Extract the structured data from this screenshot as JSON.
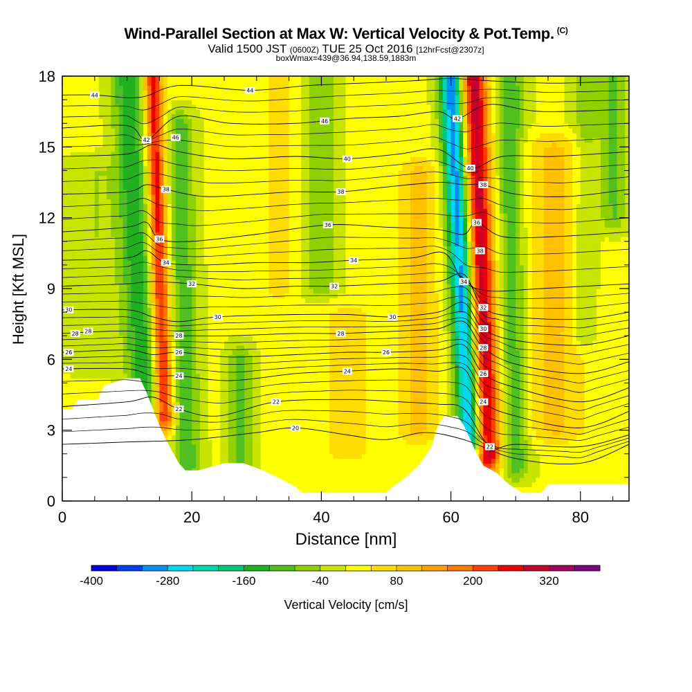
{
  "title": {
    "main": "Wind-Parallel Section at Max W: Vertical Velocity & Pot.Temp.",
    "mark": "(C)",
    "valid_prefix": "Valid 1500 JST",
    "valid_utc": "(0600Z)",
    "valid_suffix": "TUE 25 Oct 2016",
    "forecast": "[12hrFcst@2307z]",
    "box_info": "boxWmax=439@36.94,138.59,1883m"
  },
  "chart_data": {
    "type": "heatmap",
    "xlabel": "Distance [nm]",
    "ylabel": "Height [Kft MSL]",
    "xlim": [
      0,
      87.5
    ],
    "ylim": [
      0,
      18
    ],
    "x_ticks": [
      0,
      20,
      40,
      60,
      80
    ],
    "y_ticks": [
      0,
      3,
      6,
      9,
      12,
      15,
      18
    ],
    "colorbar": {
      "label": "Vertical Velocity [cm/s]",
      "tick_labels": [
        "-400",
        "-280",
        "-160",
        "-40",
        "80",
        "200",
        "320"
      ],
      "tick_values": [
        -400,
        -280,
        -160,
        -40,
        80,
        200,
        320
      ],
      "levels_min": -400,
      "levels_step": 40,
      "colors": [
        "#0000dd",
        "#0040f0",
        "#0090f0",
        "#00d8f0",
        "#00d8b0",
        "#00c878",
        "#20b020",
        "#50c020",
        "#90d000",
        "#c8e400",
        "#ffff00",
        "#ffdc00",
        "#ffc000",
        "#ffa000",
        "#ff7800",
        "#ff4000",
        "#ee0000",
        "#c80030",
        "#a00060",
        "#800080"
      ]
    },
    "terrain_kft": [
      [
        0,
        3.9
      ],
      [
        1.5,
        3.9
      ],
      [
        2.5,
        4.3
      ],
      [
        5.5,
        4.3
      ],
      [
        6.5,
        4.9
      ],
      [
        10,
        5.2
      ],
      [
        12,
        5.2
      ],
      [
        13,
        4.6
      ],
      [
        14,
        3.9
      ],
      [
        15,
        3.2
      ],
      [
        16,
        2.6
      ],
      [
        17,
        2.1
      ],
      [
        18,
        1.6
      ],
      [
        19,
        1.3
      ],
      [
        21,
        1.3
      ],
      [
        25,
        1.6
      ],
      [
        28,
        1.6
      ],
      [
        31,
        1.3
      ],
      [
        34,
        0.9
      ],
      [
        36,
        0.6
      ],
      [
        37,
        0.35
      ],
      [
        39,
        0.35
      ],
      [
        42,
        0.35
      ],
      [
        46,
        0.35
      ],
      [
        50,
        0.35
      ],
      [
        51,
        0.6
      ],
      [
        53,
        1.0
      ],
      [
        55,
        1.5
      ],
      [
        57,
        2.3
      ],
      [
        58,
        3.2
      ],
      [
        59,
        3.6
      ],
      [
        61,
        3.6
      ],
      [
        62,
        3.2
      ],
      [
        63,
        2.6
      ],
      [
        64,
        2.0
      ],
      [
        65,
        1.5
      ],
      [
        67,
        1.2
      ],
      [
        69,
        0.7
      ],
      [
        71,
        0.35
      ],
      [
        74,
        0.35
      ],
      [
        75,
        0.7
      ],
      [
        79,
        0.7
      ],
      [
        83,
        0.7
      ],
      [
        87.5,
        0.7
      ]
    ],
    "theta_contours_K": [
      {
        "label": "20",
        "at": [
          [
            36,
            3.1
          ]
        ],
        "values": [
          [
            0,
            2.4
          ],
          [
            10,
            2.5
          ],
          [
            20,
            2.6
          ],
          [
            30,
            2.9
          ],
          [
            36,
            3.1
          ],
          [
            44,
            2.8
          ],
          [
            50,
            2.6
          ],
          [
            56,
            2.9
          ],
          [
            62,
            2.6
          ],
          [
            70,
            1.8
          ],
          [
            80,
            1.6
          ],
          [
            87.5,
            2.4
          ]
        ]
      },
      {
        "label": "22",
        "at": [
          [
            33,
            4.2
          ],
          [
            18,
            3.9
          ],
          [
            66,
            2.3
          ]
        ],
        "values": [
          [
            0,
            4.0
          ],
          [
            10,
            4.2
          ],
          [
            14,
            4.4
          ],
          [
            18,
            3.9
          ],
          [
            24,
            3.6
          ],
          [
            33,
            4.2
          ],
          [
            44,
            4.3
          ],
          [
            52,
            4.2
          ],
          [
            58,
            4.1
          ],
          [
            62,
            3.9
          ],
          [
            66,
            2.3
          ],
          [
            70,
            2.4
          ],
          [
            80,
            2.3
          ],
          [
            87.5,
            2.8
          ]
        ]
      },
      {
        "label": "24",
        "at": [
          [
            1,
            5.6
          ],
          [
            18,
            5.3
          ],
          [
            44,
            5.5
          ],
          [
            65,
            4.2
          ]
        ],
        "values": [
          [
            0,
            5.6
          ],
          [
            10,
            5.6
          ],
          [
            14,
            5.3
          ],
          [
            18,
            5.3
          ],
          [
            26,
            5.1
          ],
          [
            36,
            5.4
          ],
          [
            44,
            5.5
          ],
          [
            52,
            5.6
          ],
          [
            58,
            5.5
          ],
          [
            62,
            5.6
          ],
          [
            65,
            4.2
          ],
          [
            70,
            3.6
          ],
          [
            80,
            3.1
          ],
          [
            87.5,
            3.8
          ]
        ]
      },
      {
        "label": "26",
        "at": [
          [
            1,
            6.3
          ],
          [
            18,
            6.3
          ],
          [
            50,
            6.3
          ],
          [
            65,
            5.4
          ]
        ],
        "values": [
          [
            0,
            6.3
          ],
          [
            10,
            6.4
          ],
          [
            14,
            6.2
          ],
          [
            18,
            6.3
          ],
          [
            26,
            6.1
          ],
          [
            36,
            6.2
          ],
          [
            44,
            6.3
          ],
          [
            50,
            6.3
          ],
          [
            58,
            6.4
          ],
          [
            62,
            6.6
          ],
          [
            65,
            5.4
          ],
          [
            70,
            4.8
          ],
          [
            80,
            4.2
          ],
          [
            87.5,
            4.8
          ]
        ]
      },
      {
        "label": "28",
        "at": [
          [
            2,
            7.1
          ],
          [
            18,
            7.0
          ],
          [
            43,
            7.1
          ],
          [
            65,
            6.5
          ]
        ],
        "values": [
          [
            0,
            7.1
          ],
          [
            10,
            7.2
          ],
          [
            14,
            7.0
          ],
          [
            18,
            7.0
          ],
          [
            26,
            7.0
          ],
          [
            36,
            7.1
          ],
          [
            43,
            7.1
          ],
          [
            52,
            7.2
          ],
          [
            58,
            7.3
          ],
          [
            62,
            7.6
          ],
          [
            65,
            6.5
          ],
          [
            70,
            5.8
          ],
          [
            80,
            5.4
          ],
          [
            87.5,
            5.9
          ]
        ]
      },
      {
        "label": "30",
        "at": [
          [
            1,
            8.1
          ],
          [
            24,
            7.8
          ],
          [
            51,
            7.8
          ],
          [
            65,
            7.3
          ]
        ],
        "values": [
          [
            0,
            8.1
          ],
          [
            10,
            8.1
          ],
          [
            14,
            7.8
          ],
          [
            18,
            7.6
          ],
          [
            24,
            7.8
          ],
          [
            36,
            7.9
          ],
          [
            44,
            7.9
          ],
          [
            51,
            7.8
          ],
          [
            58,
            8.0
          ],
          [
            62,
            8.4
          ],
          [
            65,
            7.3
          ],
          [
            70,
            6.8
          ],
          [
            80,
            6.6
          ],
          [
            87.5,
            7.0
          ]
        ]
      },
      {
        "label": "32",
        "at": [
          [
            20,
            9.2
          ],
          [
            42,
            9.1
          ],
          [
            65,
            8.2
          ]
        ],
        "values": [
          [
            0,
            9.1
          ],
          [
            10,
            9.2
          ],
          [
            14,
            9.3
          ],
          [
            20,
            9.2
          ],
          [
            28,
            9.0
          ],
          [
            36,
            9.1
          ],
          [
            42,
            9.1
          ],
          [
            50,
            9.2
          ],
          [
            58,
            9.3
          ],
          [
            62,
            9.6
          ],
          [
            65,
            8.2
          ],
          [
            70,
            7.8
          ],
          [
            80,
            7.7
          ],
          [
            87.5,
            8.0
          ]
        ]
      },
      {
        "label": "34",
        "at": [
          [
            16,
            10.1
          ],
          [
            45,
            10.2
          ],
          [
            62,
            9.3
          ]
        ],
        "values": [
          [
            0,
            10.2
          ],
          [
            10,
            10.3
          ],
          [
            13,
            10.6
          ],
          [
            16,
            10.1
          ],
          [
            22,
            10.0
          ],
          [
            30,
            10.1
          ],
          [
            38,
            10.1
          ],
          [
            45,
            10.2
          ],
          [
            54,
            10.3
          ],
          [
            59,
            10.5
          ],
          [
            62,
            9.3
          ],
          [
            66,
            8.9
          ],
          [
            74,
            9.0
          ],
          [
            87.5,
            9.2
          ]
        ]
      },
      {
        "label": "36",
        "at": [
          [
            15,
            11.1
          ],
          [
            41,
            11.7
          ],
          [
            64,
            11.8
          ]
        ],
        "values": [
          [
            0,
            11.4
          ],
          [
            10,
            11.6
          ],
          [
            13,
            11.8
          ],
          [
            15,
            11.1
          ],
          [
            20,
            11.0
          ],
          [
            30,
            11.3
          ],
          [
            41,
            11.7
          ],
          [
            50,
            11.6
          ],
          [
            58,
            11.5
          ],
          [
            62,
            11.3
          ],
          [
            64,
            11.8
          ],
          [
            68,
            11.2
          ],
          [
            76,
            11.2
          ],
          [
            87.5,
            11.4
          ]
        ]
      },
      {
        "label": "38",
        "at": [
          [
            16,
            13.2
          ],
          [
            43,
            13.1
          ],
          [
            65,
            13.4
          ]
        ],
        "values": [
          [
            0,
            13.0
          ],
          [
            10,
            13.1
          ],
          [
            13,
            13.4
          ],
          [
            16,
            13.2
          ],
          [
            22,
            12.9
          ],
          [
            30,
            13.0
          ],
          [
            36,
            13.1
          ],
          [
            43,
            13.1
          ],
          [
            50,
            13.3
          ],
          [
            58,
            13.5
          ],
          [
            62,
            13.4
          ],
          [
            65,
            13.4
          ],
          [
            70,
            13.0
          ],
          [
            78,
            12.9
          ],
          [
            87.5,
            13.2
          ]
        ]
      },
      {
        "label": "40",
        "at": [
          [
            44,
            14.5
          ],
          [
            63,
            14.1
          ]
        ],
        "values": [
          [
            0,
            14.6
          ],
          [
            10,
            14.7
          ],
          [
            14,
            15.1
          ],
          [
            18,
            14.8
          ],
          [
            26,
            14.5
          ],
          [
            36,
            14.6
          ],
          [
            44,
            14.5
          ],
          [
            52,
            14.7
          ],
          [
            58,
            14.9
          ],
          [
            63,
            14.1
          ],
          [
            68,
            14.6
          ],
          [
            76,
            14.6
          ],
          [
            87.5,
            14.8
          ]
        ]
      },
      {
        "label": "42",
        "at": [
          [
            13,
            15.3
          ],
          [
            61,
            16.2
          ]
        ],
        "values": [
          [
            0,
            15.8
          ],
          [
            10,
            15.9
          ],
          [
            13,
            15.3
          ],
          [
            18,
            16.3
          ],
          [
            26,
            16.0
          ],
          [
            36,
            16.0
          ],
          [
            44,
            16.2
          ],
          [
            52,
            16.3
          ],
          [
            58,
            16.5
          ],
          [
            61,
            16.2
          ],
          [
            66,
            16.8
          ],
          [
            74,
            16.5
          ],
          [
            87.5,
            16.6
          ]
        ]
      },
      {
        "label": "44",
        "at": [
          [
            5,
            17.2
          ],
          [
            29,
            17.4
          ]
        ],
        "values": [
          [
            0,
            17.2
          ],
          [
            5,
            17.2
          ],
          [
            12,
            17.1
          ],
          [
            18,
            17.6
          ],
          [
            29,
            17.4
          ],
          [
            38,
            17.6
          ],
          [
            46,
            17.7
          ],
          [
            54,
            17.8
          ],
          [
            60,
            17.9
          ],
          [
            66,
            17.8
          ],
          [
            76,
            17.7
          ],
          [
            87.5,
            17.8
          ]
        ]
      }
    ],
    "extra_labels": [
      {
        "label": "46",
        "at": [
          [
            17.5,
            15.4
          ]
        ]
      },
      {
        "label": "46",
        "at": [
          [
            40.5,
            16.1
          ]
        ]
      },
      {
        "label": "28",
        "at": [
          [
            4,
            7.2
          ]
        ]
      },
      {
        "label": "38",
        "at": [
          [
            64.5,
            10.6
          ]
        ]
      }
    ],
    "velocity_features_cms": [
      {
        "x": 15.8,
        "y0": 3.5,
        "y1": 18.0,
        "x_top": 14.0,
        "x_bottom": 16.2,
        "width": 1.4,
        "w": 260
      },
      {
        "x": 11.5,
        "y0": 4.0,
        "y1": 18.0,
        "x_top": 10.0,
        "x_bottom": 13.5,
        "width": 2.4,
        "w": -150
      },
      {
        "x": 19.0,
        "y0": 1.4,
        "y1": 16.0,
        "x_top": 18.0,
        "x_bottom": 19.5,
        "width": 2.0,
        "w": -110
      },
      {
        "x": 65.5,
        "y0": 1.8,
        "y1": 18.0,
        "x_top": 63.5,
        "x_bottom": 66.0,
        "width": 2.2,
        "w": 300
      },
      {
        "x": 62.0,
        "y0": 2.5,
        "y1": 18.0,
        "x_top": 60.0,
        "x_bottom": 63.5,
        "width": 1.8,
        "w": -330
      },
      {
        "x": 69.5,
        "y0": 1.5,
        "y1": 18.0,
        "x_top": 69.0,
        "x_bottom": 70.0,
        "width": 2.2,
        "w": -120
      },
      {
        "x": 27.5,
        "y0": 1.2,
        "y1": 6.0,
        "x_top": 27.5,
        "x_bottom": 27.5,
        "width": 1.8,
        "w": -110
      },
      {
        "x": 40.0,
        "y0": 9.0,
        "y1": 18.0,
        "x_top": 40.0,
        "x_bottom": 40.0,
        "width": 2.5,
        "w": -70
      },
      {
        "x": 76.0,
        "y0": 3.0,
        "y1": 15.0,
        "x_top": 76.0,
        "x_bottom": 76.0,
        "width": 5.0,
        "w": 85
      },
      {
        "x": 33.5,
        "y0": 9.0,
        "y1": 18.0,
        "x_top": 33.5,
        "x_bottom": 33.5,
        "width": 2.0,
        "w": 65
      },
      {
        "x": 55.0,
        "y0": 3.0,
        "y1": 14.0,
        "x_top": 55.0,
        "x_bottom": 55.0,
        "width": 3.0,
        "w": 90
      },
      {
        "x": 44.0,
        "y0": 2.0,
        "y1": 8.0,
        "x_top": 44.0,
        "x_bottom": 44.0,
        "width": 6.0,
        "w": 45
      },
      {
        "x": 80.5,
        "y0": 7.0,
        "y1": 18.0,
        "x_top": 81.0,
        "x_bottom": 80.0,
        "width": 2.0,
        "w": -70
      },
      {
        "x": 5.0,
        "y0": 6.0,
        "y1": 14.0,
        "x_top": 5.0,
        "x_bottom": 5.0,
        "width": 4.0,
        "w": -45
      },
      {
        "x": 85.0,
        "y0": 12.0,
        "y1": 18.0,
        "x_top": 85.0,
        "x_bottom": 85.0,
        "width": 2.0,
        "w": -90
      }
    ]
  }
}
